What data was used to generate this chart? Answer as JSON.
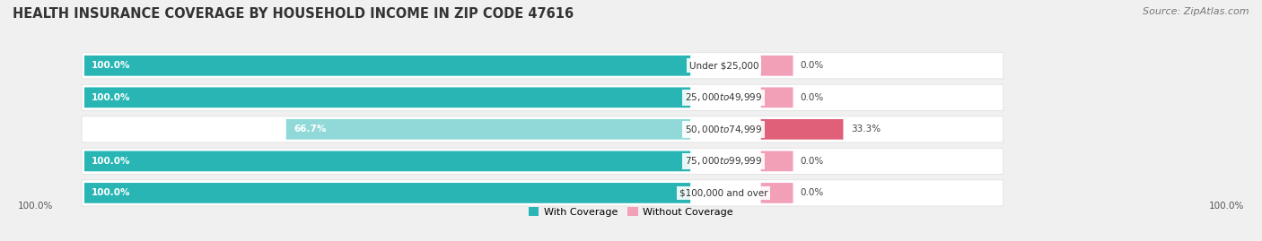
{
  "title": "HEALTH INSURANCE COVERAGE BY HOUSEHOLD INCOME IN ZIP CODE 47616",
  "source": "Source: ZipAtlas.com",
  "categories": [
    "Under $25,000",
    "$25,000 to $49,999",
    "$50,000 to $74,999",
    "$75,000 to $99,999",
    "$100,000 and over"
  ],
  "with_coverage": [
    100.0,
    100.0,
    66.7,
    100.0,
    100.0
  ],
  "without_coverage": [
    0.0,
    0.0,
    33.3,
    0.0,
    0.0
  ],
  "color_with_full": "#2ab5b5",
  "color_with_light": "#90d9d8",
  "color_without_light": "#f2a0b8",
  "color_without_dark": "#e0607a",
  "background_color": "#f0f0f0",
  "row_bg_color": "#ffffff",
  "title_fontsize": 10.5,
  "source_fontsize": 8,
  "bar_label_fontsize": 7.5,
  "cat_label_fontsize": 7.5,
  "legend_fontsize": 8
}
